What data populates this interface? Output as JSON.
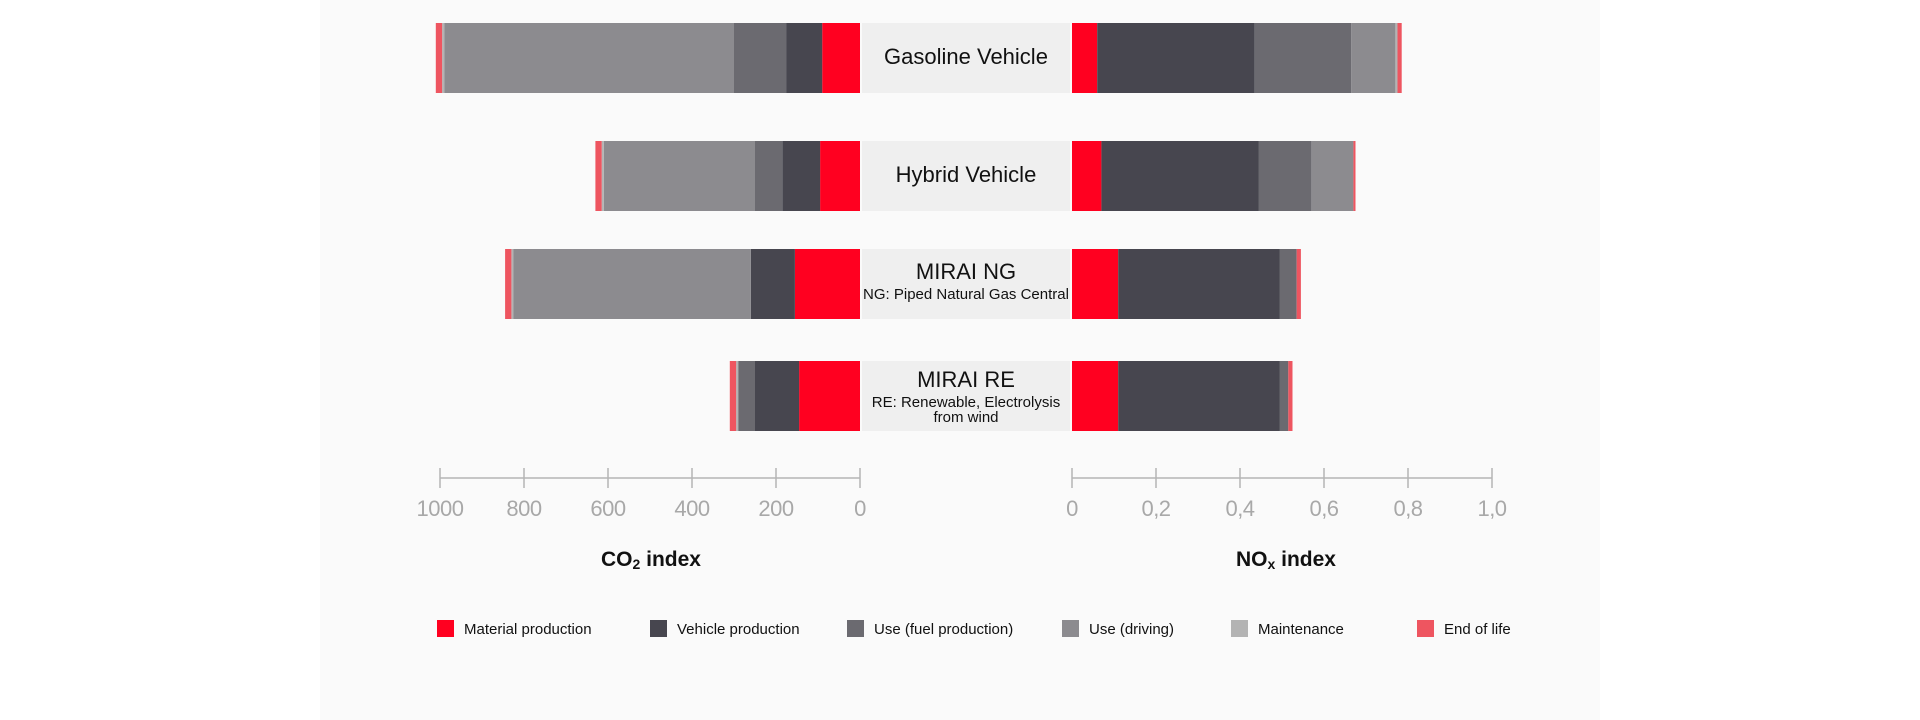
{
  "chart_data": {
    "type": "bar",
    "stacked": true,
    "orientation": "horizontal",
    "components": [
      {
        "name": "Material production",
        "color": "#ff0020"
      },
      {
        "name": "Vehicle production",
        "color": "#47464f"
      },
      {
        "name": "Use (fuel production)",
        "color": "#6b6a70"
      },
      {
        "name": "Use (driving)",
        "color": "#8c8b8f"
      },
      {
        "name": "Maintenance",
        "color": "#b3b3b3"
      },
      {
        "name": "End of life",
        "color": "#ee5560"
      }
    ],
    "categories": [
      {
        "title": "Gasoline Vehicle",
        "subtitle": ""
      },
      {
        "title": "Hybrid Vehicle",
        "subtitle": ""
      },
      {
        "title": "MIRAI NG",
        "subtitle": "NG: Piped Natural Gas Central"
      },
      {
        "title": "MIRAI RE",
        "subtitle": "RE: Renewable, Electrolysis\nfrom wind"
      }
    ],
    "co2": {
      "axis_label": "CO2 index",
      "xlim": [
        1000,
        0
      ],
      "ticks": [
        "1000",
        "800",
        "600",
        "400",
        "200",
        "0"
      ],
      "tick_values": [
        1000,
        800,
        600,
        400,
        200,
        0
      ],
      "values": [
        [
          90,
          85,
          125,
          690,
          5,
          15
        ],
        [
          95,
          90,
          65,
          360,
          5,
          15
        ],
        [
          155,
          105,
          0,
          565,
          5,
          15
        ],
        [
          145,
          105,
          40,
          0,
          5,
          15
        ]
      ]
    },
    "nox": {
      "axis_label": "NOx index",
      "xlim": [
        0,
        1.0
      ],
      "ticks": [
        "0",
        "0,2",
        "0,4",
        "0,6",
        "0,8",
        "1,0"
      ],
      "tick_values": [
        0,
        0.2,
        0.4,
        0.6,
        0.8,
        1.0
      ],
      "values": [
        [
          0.06,
          0.375,
          0.23,
          0.105,
          0.005,
          0.01
        ],
        [
          0.07,
          0.375,
          0.125,
          0.1,
          0.0,
          0.005
        ],
        [
          0.11,
          0.385,
          0.04,
          0.0,
          0.0,
          0.01
        ],
        [
          0.11,
          0.385,
          0.02,
          0.0,
          0.0,
          0.01
        ]
      ]
    }
  }
}
